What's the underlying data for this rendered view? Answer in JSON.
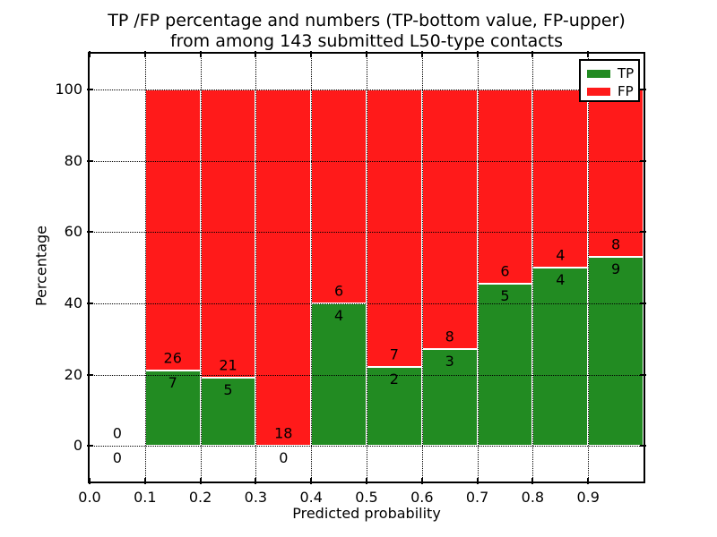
{
  "chart_data": {
    "type": "bar",
    "stacked": true,
    "title_line1": "TP /FP percentage and numbers (TP-bottom value, FP-upper)",
    "title_line2": "from among 143 submitted L50-type contacts",
    "xlabel": "Predicted probability",
    "ylabel": "Percentage",
    "total_contacts": 143,
    "xlim": [
      0.0,
      1.0
    ],
    "ylim": [
      -10,
      110
    ],
    "grid": "dotted",
    "x_tick_values": [
      0,
      0.1,
      0.2,
      0.3,
      0.4,
      0.5,
      0.6,
      0.7,
      0.8,
      0.9
    ],
    "x_tick_labels": [
      "0.0",
      "0.1",
      "0.2",
      "0.3",
      "0.4",
      "0.5",
      "0.6",
      "0.7",
      "0.8",
      "0.9"
    ],
    "y_tick_values": [
      0,
      20,
      40,
      60,
      80,
      100
    ],
    "y_tick_labels": [
      "0",
      "20",
      "40",
      "60",
      "80",
      "100"
    ],
    "colors": {
      "tp": "#228b22",
      "fp": "#ff1a1a",
      "text": "#000000",
      "background": "#ffffff"
    },
    "legend": {
      "position": "upper-right",
      "entries": [
        {
          "label": "TP",
          "color": "#228b22"
        },
        {
          "label": "FP",
          "color": "#ff1a1a"
        }
      ]
    },
    "bins": [
      {
        "x_start": 0.0,
        "x_end": 0.1,
        "tp_count": 0,
        "fp_count": 0,
        "tp_pct": 0,
        "fp_pct": 0
      },
      {
        "x_start": 0.1,
        "x_end": 0.2,
        "tp_count": 7,
        "fp_count": 26,
        "tp_pct": 21.21,
        "fp_pct": 78.79
      },
      {
        "x_start": 0.2,
        "x_end": 0.3,
        "tp_count": 5,
        "fp_count": 21,
        "tp_pct": 19.23,
        "fp_pct": 80.77
      },
      {
        "x_start": 0.3,
        "x_end": 0.4,
        "tp_count": 0,
        "fp_count": 18,
        "tp_pct": 0,
        "fp_pct": 100
      },
      {
        "x_start": 0.4,
        "x_end": 0.5,
        "tp_count": 4,
        "fp_count": 6,
        "tp_pct": 40,
        "fp_pct": 60
      },
      {
        "x_start": 0.5,
        "x_end": 0.6,
        "tp_count": 2,
        "fp_count": 7,
        "tp_pct": 22.22,
        "fp_pct": 77.78
      },
      {
        "x_start": 0.6,
        "x_end": 0.7,
        "tp_count": 3,
        "fp_count": 8,
        "tp_pct": 27.27,
        "fp_pct": 72.73
      },
      {
        "x_start": 0.7,
        "x_end": 0.8,
        "tp_count": 5,
        "fp_count": 6,
        "tp_pct": 45.45,
        "fp_pct": 54.55
      },
      {
        "x_start": 0.8,
        "x_end": 0.9,
        "tp_count": 4,
        "fp_count": 4,
        "tp_pct": 50,
        "fp_pct": 50
      },
      {
        "x_start": 0.9,
        "x_end": 1.0,
        "tp_count": 9,
        "fp_count": 8,
        "tp_pct": 52.94,
        "fp_pct": 47.06
      }
    ]
  }
}
